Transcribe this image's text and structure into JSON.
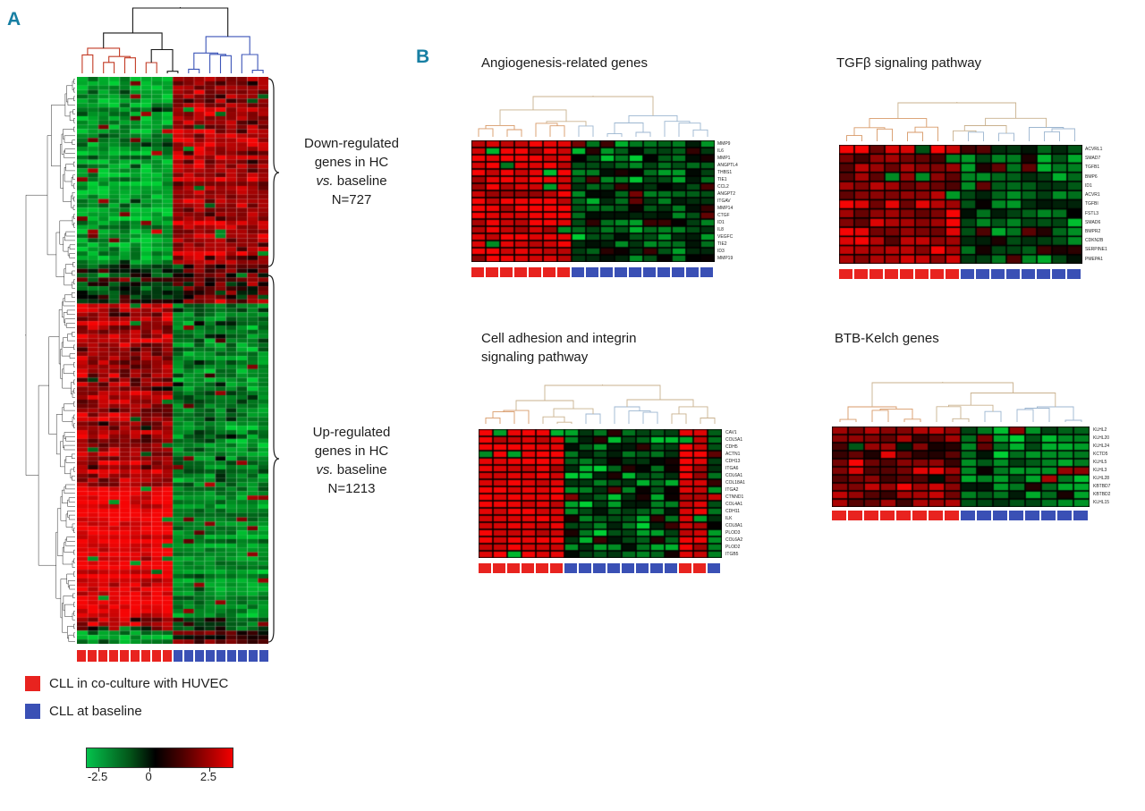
{
  "panels": {
    "a_label": "A",
    "b_label": "B"
  },
  "colors": {
    "accent": "#177fa3",
    "text": "#1e1e1e",
    "group_red": "#e8231f",
    "group_blue": "#3a50b5",
    "heat_max_red": "#f40000",
    "heat_min_green": "#00cd37",
    "dendro_red": "#c23a24",
    "dendro_blue": "#3c55b8",
    "dendro_dark": "#161616",
    "dendro_light_red": "#d89a68",
    "dendro_light_blue": "#9cb6d0",
    "dendro_light_mix": "#c9b18e",
    "colorbar_gradient": [
      "#04c24c",
      "#035318",
      "#000000",
      "#4e0000",
      "#f20000"
    ]
  },
  "panel_a": {
    "legend": {
      "items": [
        {
          "label": "CLL in co-culture with HUVEC",
          "color": "#e8231f"
        },
        {
          "label": "CLL at baseline",
          "color": "#3a50b5"
        }
      ],
      "colorbar_labels": [
        "-2.5",
        "0",
        "2.5"
      ]
    }
  },
  "chart_data": [
    {
      "id": "main-clustered-heatmap",
      "type": "heatmap",
      "title": "",
      "n_rows": 130,
      "value_range": [
        -2.5,
        2.5
      ],
      "col_groups": [
        {
          "label": "CLL in co-culture with HUVEC",
          "color": "#e8231f",
          "count": 9
        },
        {
          "label": "CLL at baseline",
          "color": "#3a50b5",
          "count": 9
        }
      ],
      "columns_pattern": [
        "r",
        "r",
        "r",
        "r",
        "r",
        "r",
        "r",
        "r",
        "r",
        "b",
        "b",
        "b",
        "b",
        "b",
        "b",
        "b",
        "b",
        "b"
      ],
      "row_blocks": [
        {
          "f0": 0.0,
          "f1": 0.33,
          "r_mean": -1.7,
          "b_mean": 1.6,
          "noise": 0.8
        },
        {
          "f0": 0.33,
          "f1": 0.4,
          "r_mean": -0.4,
          "b_mean": 0.6,
          "noise": 1.15
        },
        {
          "f0": 0.4,
          "f1": 0.72,
          "r_mean": 1.5,
          "b_mean": -1.35,
          "noise": 0.9
        },
        {
          "f0": 0.72,
          "f1": 0.955,
          "r_mean": 2.35,
          "b_mean": -1.5,
          "noise": 0.5
        },
        {
          "f0": 0.955,
          "f1": 0.975,
          "r_mean": 1.1,
          "b_mean": -0.7,
          "noise": 1.2
        },
        {
          "f0": 0.975,
          "f1": 1.001,
          "r_mean": -1.9,
          "b_mean": 0.6,
          "noise": 0.9
        }
      ],
      "annotations": {
        "down": {
          "lines": [
            "Down-regulated",
            "genes in HC"
          ],
          "vs_italic": "vs.",
          "vs_rest": " baseline",
          "n_label": "N=727"
        },
        "up": {
          "lines": [
            "Up-regulated",
            "genes in HC"
          ],
          "vs_italic": "vs.",
          "vs_rest": " baseline",
          "n_label": "N=1213"
        }
      },
      "seed": 11,
      "col_dendro_seed": 5,
      "row_dendro_seed": 9
    },
    {
      "id": "angiogenesis-heatmap",
      "type": "heatmap",
      "title": "Angiogenesis-related genes",
      "title_lines": [
        "Angiogenesis-related genes"
      ],
      "row_labels": [
        "MMP9",
        "IL6",
        "MMP1",
        "ANGPTL4",
        "THBS1",
        "TIE1",
        "CCL2",
        "ANGPT2",
        "ITGAV",
        "MMP14",
        "CTGF",
        "ID1",
        "IL8",
        "VEGFC",
        "TIE2",
        "ID3",
        "MMP19"
      ],
      "columns_pattern": [
        "r",
        "r",
        "r",
        "r",
        "r",
        "r",
        "r",
        "b",
        "b",
        "b",
        "b",
        "b",
        "b",
        "b",
        "b",
        "b",
        "b"
      ],
      "value_range": [
        -2.5,
        2.5
      ],
      "r_mean": 2.1,
      "b_mean": -0.9,
      "r_noise": 0.7,
      "b_noise": 1.2,
      "seed": 21,
      "dendro_seed": 22
    },
    {
      "id": "tgfb-heatmap",
      "type": "heatmap",
      "title": "TGFβ signaling pathway",
      "title_lines": [
        "TGFβ signaling pathway"
      ],
      "row_labels": [
        "ACVRL1",
        "SMAD7",
        "TGFB1",
        "BMP6",
        "ID1",
        "ACVR1",
        "TGFBI",
        "FSTL3",
        "SMAD6",
        "BMPR2",
        "CDKN2B",
        "SERPINE1",
        "PMEPA1"
      ],
      "columns_pattern": [
        "r",
        "r",
        "r",
        "r",
        "r",
        "r",
        "r",
        "r",
        "b",
        "b",
        "b",
        "b",
        "b",
        "b",
        "b",
        "b"
      ],
      "value_range": [
        -2.5,
        2.5
      ],
      "r_mean": 1.6,
      "b_mean": -0.8,
      "r_noise": 1.0,
      "b_noise": 1.25,
      "seed": 31,
      "dendro_seed": 32
    },
    {
      "id": "cell-adhesion-heatmap",
      "type": "heatmap",
      "title": "Cell adhesion and integrin signaling pathway",
      "title_lines": [
        "Cell adhesion and integrin",
        "signaling pathway"
      ],
      "row_labels": [
        "CAV1",
        "COL5A1",
        "CDH5",
        "ACTN1",
        "CDH13",
        "ITGA6",
        "COL6A1",
        "COL18A1",
        "ITGA2",
        "CTNND1",
        "COL4A1",
        "CDH11",
        "ILK",
        "COL8A1",
        "PLOD3",
        "COL6A2",
        "PLOD2",
        "ITGB5"
      ],
      "columns_pattern": [
        "r",
        "r",
        "r",
        "r",
        "r",
        "r",
        "b",
        "b",
        "b",
        "b",
        "b",
        "b",
        "b",
        "b",
        "r",
        "r",
        "b"
      ],
      "value_range": [
        -2.5,
        2.5
      ],
      "r_mean": 2.3,
      "b_mean": -0.85,
      "r_noise": 0.45,
      "b_noise": 1.25,
      "seed": 41,
      "dendro_seed": 42
    },
    {
      "id": "btb-kelch-heatmap",
      "type": "heatmap",
      "title": "BTB-Kelch genes",
      "title_lines": [
        "BTB-Kelch genes"
      ],
      "row_labels": [
        "KLHL2",
        "KLHL20",
        "KLHL24",
        "KCTD5",
        "KLHL5",
        "KLHL3",
        "KLHL28",
        "KBTBD7",
        "KBTBD2",
        "KLHL15"
      ],
      "columns_pattern": [
        "r",
        "r",
        "r",
        "r",
        "r",
        "r",
        "r",
        "r",
        "b",
        "b",
        "b",
        "b",
        "b",
        "b",
        "b",
        "b"
      ],
      "value_range": [
        -2.5,
        2.5
      ],
      "r_mean": 1.35,
      "b_mean": -1.25,
      "r_noise": 1.0,
      "b_noise": 0.95,
      "seed": 51,
      "dendro_seed": 52
    }
  ]
}
